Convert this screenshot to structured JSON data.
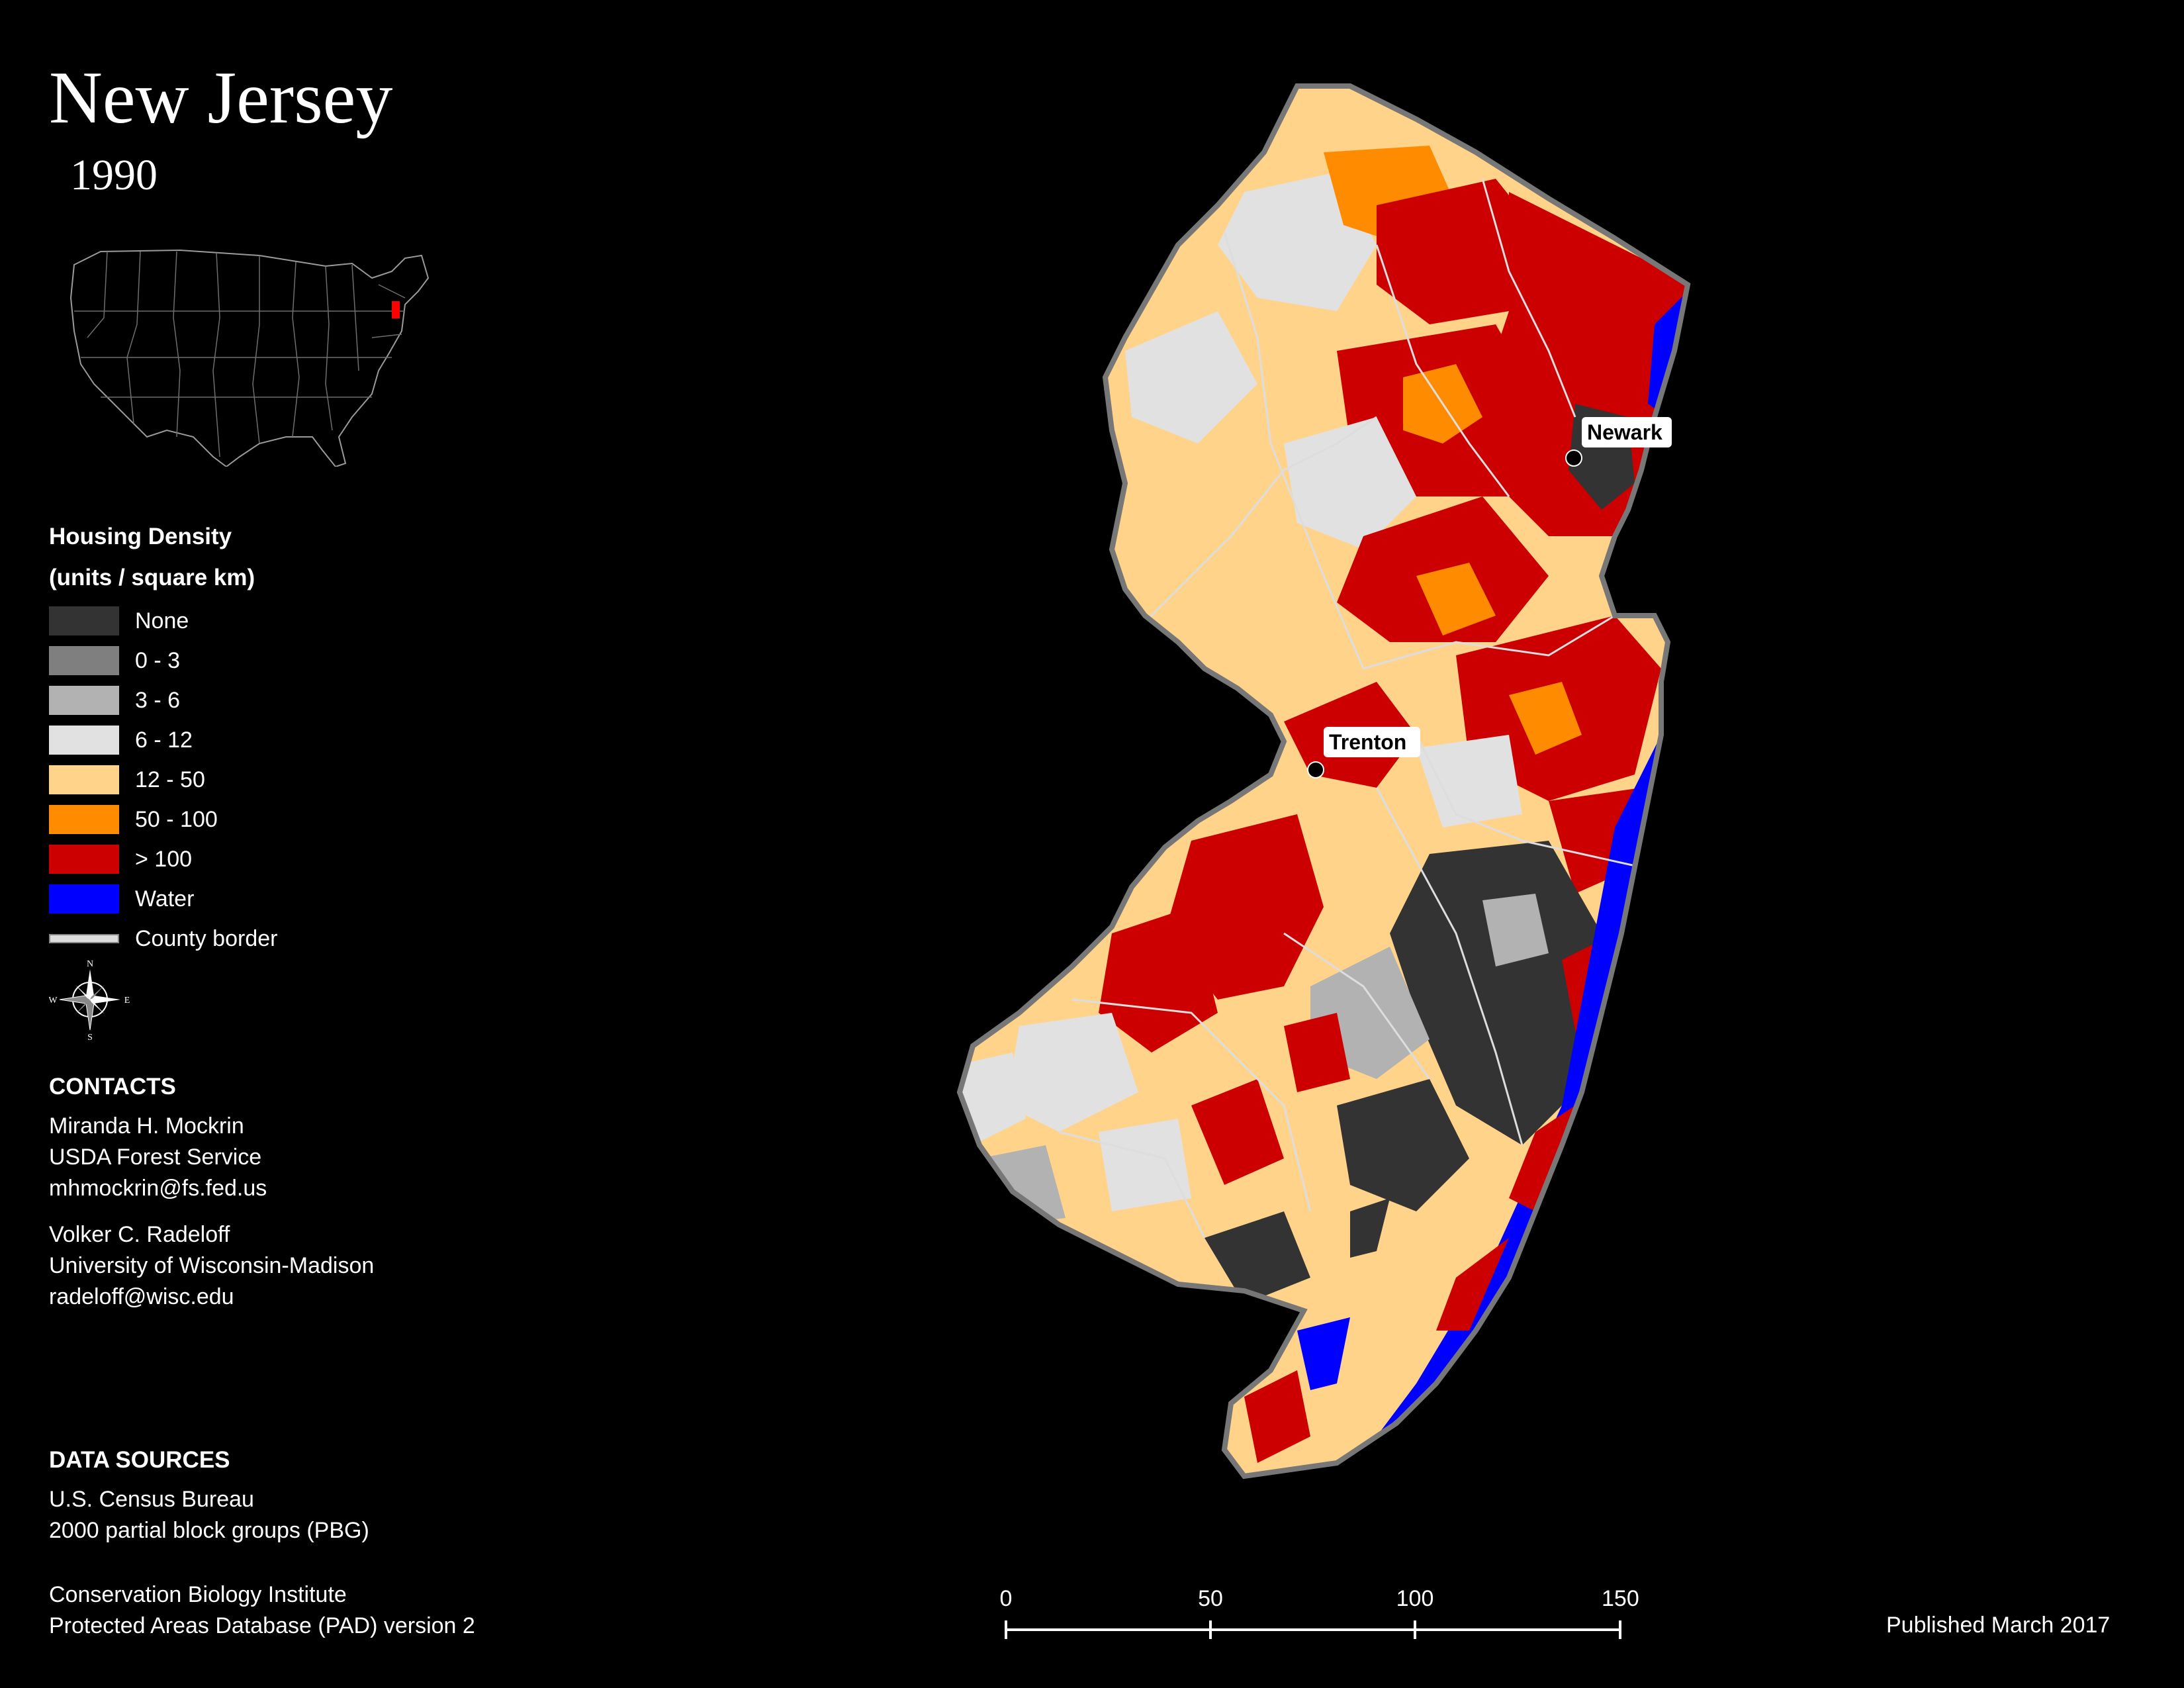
{
  "title": "New Jersey",
  "year": "1990",
  "legend": {
    "title_line1": "Housing Density",
    "title_line2": "(units / square km)",
    "items": [
      {
        "label": "None",
        "color": "#333333"
      },
      {
        "label": "0 - 3",
        "color": "#7f7f7f"
      },
      {
        "label": "3 - 6",
        "color": "#b2b2b2"
      },
      {
        "label": "6 - 12",
        "color": "#e1e1e1"
      },
      {
        "label": "12 - 50",
        "color": "#ffd38a"
      },
      {
        "label": "50 - 100",
        "color": "#ff8c00"
      },
      {
        "label": "> 100",
        "color": "#cc0000"
      },
      {
        "label": "Water",
        "color": "#0000ff"
      },
      {
        "label": "County border",
        "color": "#dddddd"
      }
    ]
  },
  "compass": {
    "n": "N",
    "s": "S",
    "e": "E",
    "w": "W"
  },
  "contacts": {
    "heading": "CONTACTS",
    "people": [
      {
        "name": "Miranda H. Mockrin",
        "org": "USDA Forest Service",
        "email": "mhmockrin@fs.fed.us"
      },
      {
        "name": "Volker C. Radeloff",
        "org": "University of Wisconsin-Madison",
        "email": "radeloff@wisc.edu"
      }
    ]
  },
  "data_sources": {
    "heading": "DATA SOURCES",
    "sources": [
      {
        "line1": "U.S. Census Bureau",
        "line2": "2000 partial block groups (PBG)"
      },
      {
        "line1": "Conservation Biology Institute",
        "line2": "Protected Areas Database (PAD) version 2"
      }
    ]
  },
  "cities": [
    {
      "name": "Newark"
    },
    {
      "name": "Trenton"
    }
  ],
  "scale": {
    "ticks": [
      "0",
      "50",
      "100",
      "150 km"
    ]
  },
  "published": "Published March 2017"
}
